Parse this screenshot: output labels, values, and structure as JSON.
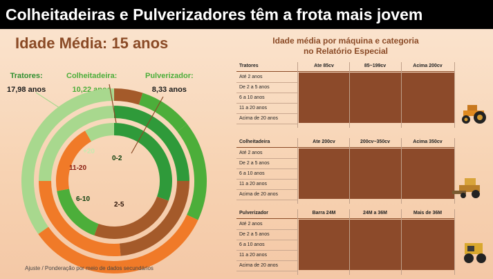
{
  "title": "Colheitadeiras e Pulverizadores têm a frota mais jovem",
  "subtitle": "Idade Média: 15 anos",
  "legend": {
    "tratores": {
      "label": "Tratores:",
      "value": "17,98 anos"
    },
    "colheitadeira": {
      "label": "Colheitadeira:",
      "value": "10,22 anos"
    },
    "pulverizador": {
      "label": "Pulverizador:",
      "value": "8,33 anos"
    }
  },
  "donut_labels": {
    "r20": "+20",
    "r0_2": "0-2",
    "r11_20": "11-20",
    "r6_10": "6-10",
    "r2_5": "2-5"
  },
  "footnote": "Ajuste / Ponderação por meio de dados secundários",
  "right_title_line1": "Idade média por máquina e categoria",
  "right_title_line2": "no Relatório Especial",
  "tables": {
    "tratores": {
      "header": [
        "Tratores",
        "Ate 85cv",
        "85~199cv",
        "Acima 200cv"
      ],
      "rows": [
        "Até 2 anos",
        "De 2 a 5 anos",
        "6 a 10 anos",
        "11 a 20 anos",
        "Acima  de 20 anos"
      ]
    },
    "colheitadeira": {
      "header": [
        "Colheitadeira",
        "Ate 200cv",
        "200cv~350cv",
        "Acima 350cv"
      ],
      "rows": [
        "Até 2 anos",
        "De 2 a 5 anos",
        "6 a 10 anos",
        "11 a 20 anos",
        "Acima  de 20 anos"
      ]
    },
    "pulverizador": {
      "header": [
        "Pulverizador",
        "Barra 24M",
        "24M a 36M",
        "Mais de 36M"
      ],
      "rows": [
        "Até 2 anos",
        "De 2 a 5 anos",
        "6 a 10 anos",
        "11 a 20 anos",
        "Acima  de 20 anos"
      ]
    }
  },
  "colors": {
    "light_green": "#a8d88e",
    "green": "#4cae3a",
    "dark_green": "#2f9a3a",
    "brown": "#a45a2a",
    "orange": "#f07a28",
    "table_fill": "#8c4a2a"
  }
}
